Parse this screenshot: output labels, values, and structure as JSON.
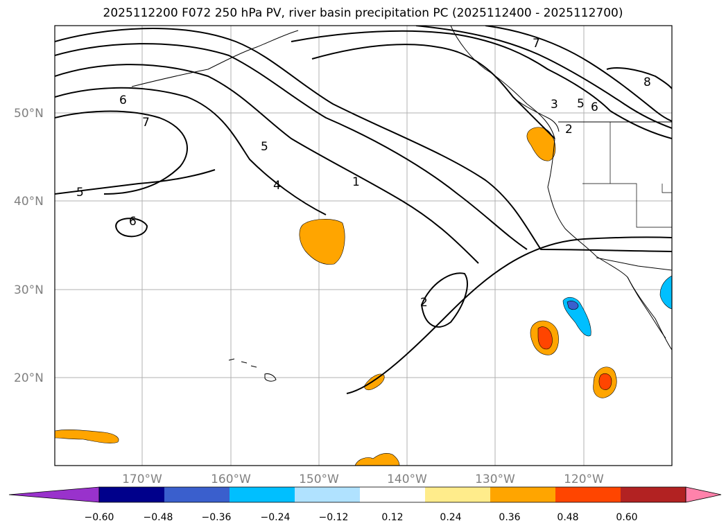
{
  "title": "2025112200 F072 250 hPa PV, river basin precipitation PC (2025112400 - 2025112700)",
  "lat_labels": [
    "50°N",
    "40°N",
    "30°N",
    "20°N"
  ],
  "lon_labels": [
    "170°W",
    "160°W",
    "150°W",
    "140°W",
    "130°W",
    "120°W"
  ],
  "contour_labels": [
    "6",
    "7",
    "5",
    "4",
    "1",
    "5",
    "6",
    "2",
    "7",
    "3",
    "5",
    "6",
    "2",
    "8"
  ],
  "colorbar": {
    "colors": [
      "#9932cc",
      "#00008b",
      "#3a5fcd",
      "#00bfff",
      "#b0e2ff",
      "#ffffff",
      "#ffec8b",
      "#ffa500",
      "#ff4500",
      "#b22222",
      "#ff82ab"
    ],
    "tick_labels": [
      "−0.60",
      "−0.48",
      "−0.36",
      "−0.24",
      "−0.12",
      "0.12",
      "0.24",
      "0.36",
      "0.48",
      "0.60"
    ]
  }
}
